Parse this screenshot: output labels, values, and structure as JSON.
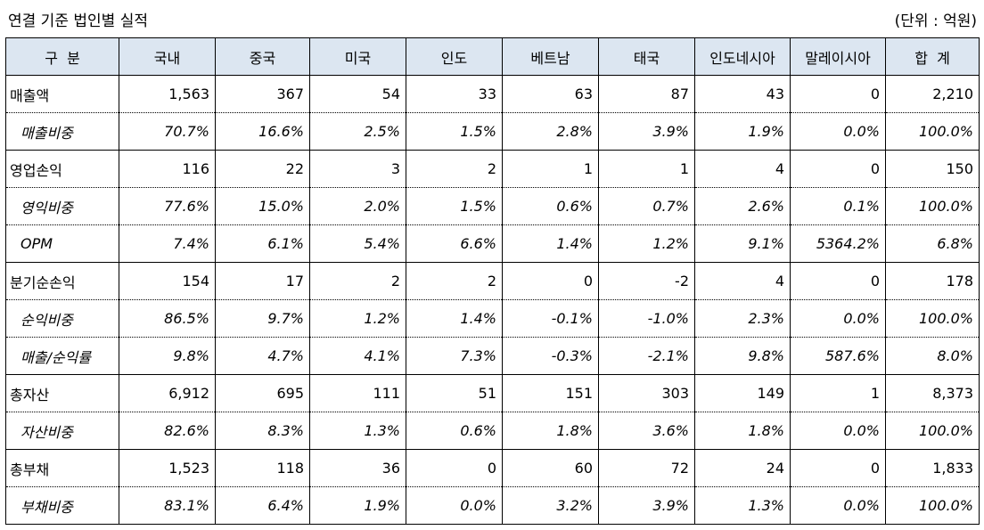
{
  "title": "연결 기준 법인별 실적",
  "unit": "(단위 : 억원)",
  "header": [
    "구  분",
    "국내",
    "중국",
    "미국",
    "인도",
    "베트남",
    "태국",
    "인도네시아",
    "말레이시아",
    "합  계"
  ],
  "rows": [
    {
      "label": "매출액",
      "sub": false,
      "values": [
        "1,563",
        "367",
        "54",
        "33",
        "63",
        "87",
        "43",
        "0",
        "2,210"
      ]
    },
    {
      "label": "매출비중",
      "sub": true,
      "values": [
        "70.7%",
        "16.6%",
        "2.5%",
        "1.5%",
        "2.8%",
        "3.9%",
        "1.9%",
        "0.0%",
        "100.0%"
      ]
    },
    {
      "label": "영업손익",
      "sub": false,
      "values": [
        "116",
        "22",
        "3",
        "2",
        "1",
        "1",
        "4",
        "0",
        "150"
      ]
    },
    {
      "label": "영익비중",
      "sub": true,
      "values": [
        "77.6%",
        "15.0%",
        "2.0%",
        "1.5%",
        "0.6%",
        "0.7%",
        "2.6%",
        "0.1%",
        "100.0%"
      ]
    },
    {
      "label": "OPM",
      "sub": true,
      "values": [
        "7.4%",
        "6.1%",
        "5.4%",
        "6.6%",
        "1.4%",
        "1.2%",
        "9.1%",
        "5364.2%",
        "6.8%"
      ]
    },
    {
      "label": "분기순손익",
      "sub": false,
      "values": [
        "154",
        "17",
        "2",
        "2",
        "0",
        "-2",
        "4",
        "0",
        "178"
      ]
    },
    {
      "label": "순익비중",
      "sub": true,
      "values": [
        "86.5%",
        "9.7%",
        "1.2%",
        "1.4%",
        "-0.1%",
        "-1.0%",
        "2.3%",
        "0.0%",
        "100.0%"
      ]
    },
    {
      "label": "매출/순익률",
      "sub": true,
      "values": [
        "9.8%",
        "4.7%",
        "4.1%",
        "7.3%",
        "-0.3%",
        "-2.1%",
        "9.8%",
        "587.6%",
        "8.0%"
      ]
    },
    {
      "label": "총자산",
      "sub": false,
      "values": [
        "6,912",
        "695",
        "111",
        "51",
        "151",
        "303",
        "149",
        "1",
        "8,373"
      ]
    },
    {
      "label": "자산비중",
      "sub": true,
      "values": [
        "82.6%",
        "8.3%",
        "1.3%",
        "0.6%",
        "1.8%",
        "3.6%",
        "1.8%",
        "0.0%",
        "100.0%"
      ]
    },
    {
      "label": "총부채",
      "sub": false,
      "values": [
        "1,523",
        "118",
        "36",
        "0",
        "60",
        "72",
        "24",
        "0",
        "1,833"
      ]
    },
    {
      "label": "부채비중",
      "sub": true,
      "values": [
        "83.1%",
        "6.4%",
        "1.9%",
        "0.0%",
        "3.2%",
        "3.9%",
        "1.3%",
        "0.0%",
        "100.0%"
      ]
    }
  ]
}
